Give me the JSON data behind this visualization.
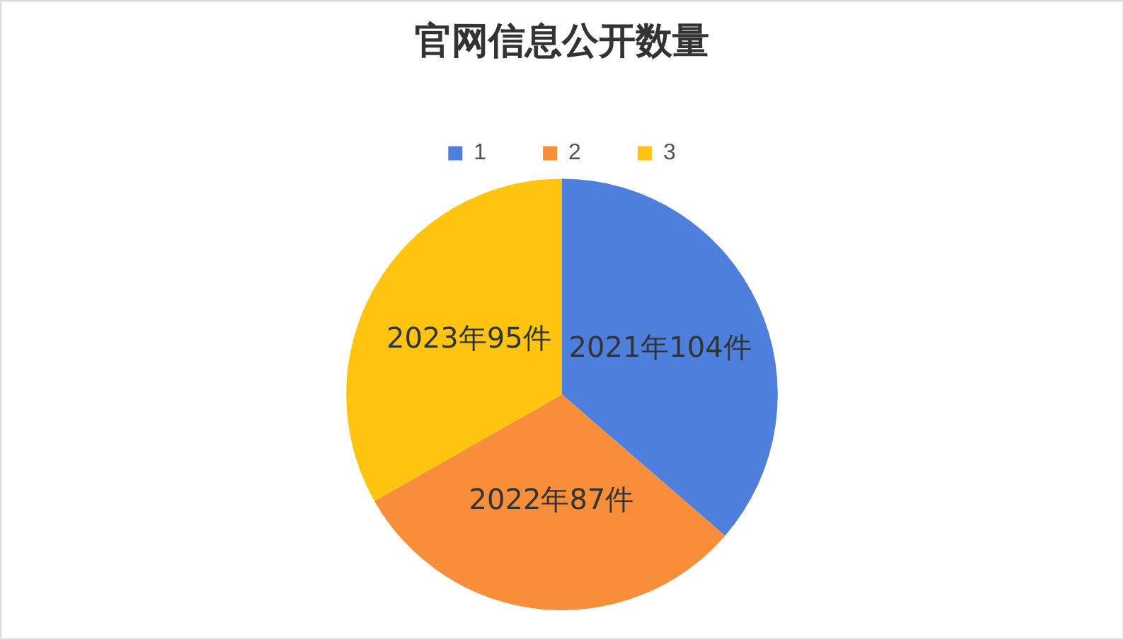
{
  "chart_data": {
    "type": "pie",
    "title": "官网信息公开数量",
    "categories": [
      "1",
      "2",
      "3"
    ],
    "values": [
      104,
      87,
      95
    ],
    "colors": [
      "#4f7fdd",
      "#f98e3a",
      "#fec410"
    ],
    "value_labels": [
      "2021年104件",
      "2022年87件",
      "2023年95件"
    ],
    "legend": "top"
  }
}
